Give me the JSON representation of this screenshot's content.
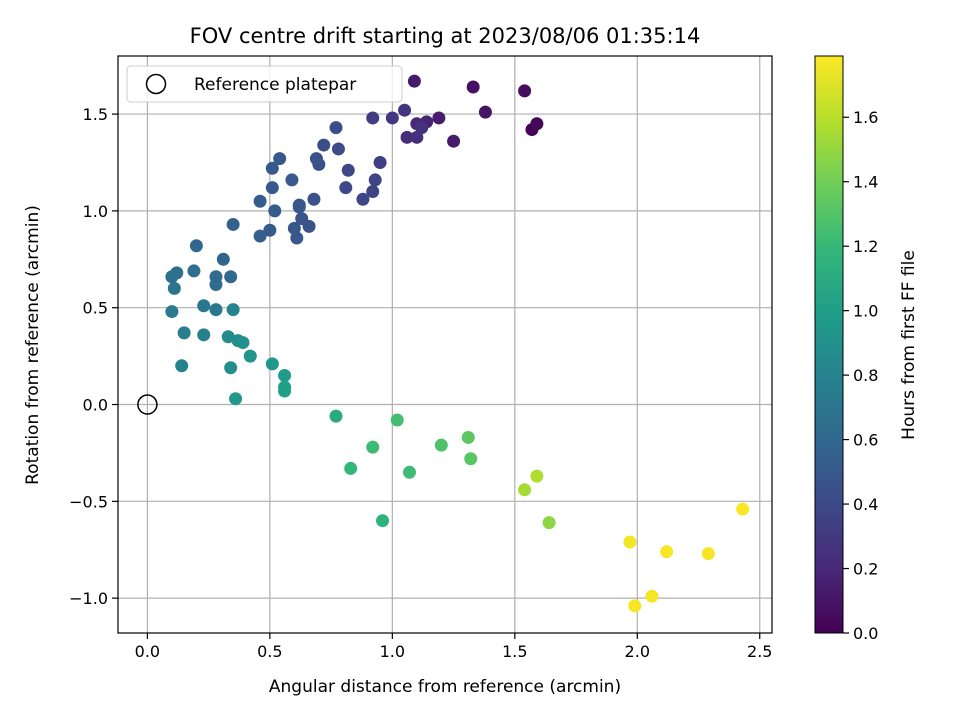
{
  "chart_data": {
    "type": "scatter",
    "title": "FOV centre drift starting at 2023/08/06 01:35:14",
    "xlabel": "Angular distance from reference (arcmin)",
    "ylabel": "Rotation from reference (arcmin)",
    "xlim": [
      -0.12,
      2.55
    ],
    "ylim": [
      -1.18,
      1.8
    ],
    "xticks": [
      0.0,
      0.5,
      1.0,
      1.5,
      2.0,
      2.5
    ],
    "xtick_labels": [
      "0.0",
      "0.5",
      "1.0",
      "1.5",
      "2.0",
      "2.5"
    ],
    "yticks": [
      -1.0,
      -0.5,
      0.0,
      0.5,
      1.0,
      1.5
    ],
    "ytick_labels": [
      "−1.0",
      "−0.5",
      "0.0",
      "0.5",
      "1.0",
      "1.5"
    ],
    "grid": true,
    "legend": {
      "position": "top-left",
      "entries": [
        "Reference platepar"
      ]
    },
    "reference_point": {
      "x": 0.0,
      "y": 0.0
    },
    "colorbar": {
      "label": "Hours from first FF file",
      "colormap": "viridis",
      "range": [
        0.0,
        1.79
      ],
      "ticks": [
        0.0,
        0.2,
        0.4,
        0.6,
        0.8,
        1.0,
        1.2,
        1.4,
        1.6
      ],
      "tick_labels": [
        "0.0",
        "0.2",
        "0.4",
        "0.6",
        "0.8",
        "1.0",
        "1.2",
        "1.4",
        "1.6"
      ],
      "colors": [
        "#440154",
        "#482878",
        "#3e4989",
        "#31688e",
        "#26828e",
        "#1f9e89",
        "#35b779",
        "#6ece58",
        "#b5de2b",
        "#fde725"
      ]
    },
    "points": [
      {
        "x": 1.57,
        "y": 1.42,
        "c": 0.02
      },
      {
        "x": 1.59,
        "y": 1.45,
        "c": 0.03
      },
      {
        "x": 1.54,
        "y": 1.62,
        "c": 0.05
      },
      {
        "x": 1.33,
        "y": 1.64,
        "c": 0.08
      },
      {
        "x": 1.38,
        "y": 1.51,
        "c": 0.1
      },
      {
        "x": 1.09,
        "y": 1.67,
        "c": 0.12
      },
      {
        "x": 1.25,
        "y": 1.36,
        "c": 0.13
      },
      {
        "x": 1.19,
        "y": 1.48,
        "c": 0.15
      },
      {
        "x": 1.14,
        "y": 1.46,
        "c": 0.18
      },
      {
        "x": 1.1,
        "y": 1.45,
        "c": 0.2
      },
      {
        "x": 1.06,
        "y": 1.38,
        "c": 0.22
      },
      {
        "x": 1.1,
        "y": 1.38,
        "c": 0.24
      },
      {
        "x": 1.12,
        "y": 1.43,
        "c": 0.26
      },
      {
        "x": 1.05,
        "y": 1.52,
        "c": 0.28
      },
      {
        "x": 1.0,
        "y": 1.48,
        "c": 0.3
      },
      {
        "x": 0.92,
        "y": 1.48,
        "c": 0.32
      },
      {
        "x": 0.95,
        "y": 1.25,
        "c": 0.34
      },
      {
        "x": 0.93,
        "y": 1.16,
        "c": 0.36
      },
      {
        "x": 0.92,
        "y": 1.1,
        "c": 0.37
      },
      {
        "x": 0.88,
        "y": 1.06,
        "c": 0.38
      },
      {
        "x": 0.82,
        "y": 1.21,
        "c": 0.39
      },
      {
        "x": 0.81,
        "y": 1.12,
        "c": 0.4
      },
      {
        "x": 0.78,
        "y": 1.32,
        "c": 0.41
      },
      {
        "x": 0.77,
        "y": 1.43,
        "c": 0.42
      },
      {
        "x": 0.72,
        "y": 1.34,
        "c": 0.43
      },
      {
        "x": 0.7,
        "y": 1.24,
        "c": 0.44
      },
      {
        "x": 0.69,
        "y": 1.27,
        "c": 0.45
      },
      {
        "x": 0.68,
        "y": 1.06,
        "c": 0.46
      },
      {
        "x": 0.66,
        "y": 0.92,
        "c": 0.47
      },
      {
        "x": 0.63,
        "y": 0.96,
        "c": 0.47
      },
      {
        "x": 0.62,
        "y": 1.02,
        "c": 0.48
      },
      {
        "x": 0.62,
        "y": 1.03,
        "c": 0.48
      },
      {
        "x": 0.6,
        "y": 0.91,
        "c": 0.49
      },
      {
        "x": 0.61,
        "y": 0.86,
        "c": 0.49
      },
      {
        "x": 0.59,
        "y": 1.16,
        "c": 0.5
      },
      {
        "x": 0.54,
        "y": 1.27,
        "c": 0.5
      },
      {
        "x": 0.51,
        "y": 1.22,
        "c": 0.51
      },
      {
        "x": 0.51,
        "y": 1.12,
        "c": 0.51
      },
      {
        "x": 0.52,
        "y": 1.0,
        "c": 0.52
      },
      {
        "x": 0.5,
        "y": 0.9,
        "c": 0.52
      },
      {
        "x": 0.46,
        "y": 1.05,
        "c": 0.53
      },
      {
        "x": 0.46,
        "y": 0.87,
        "c": 0.53
      },
      {
        "x": 0.35,
        "y": 0.93,
        "c": 0.55
      },
      {
        "x": 0.31,
        "y": 0.75,
        "c": 0.58
      },
      {
        "x": 0.2,
        "y": 0.82,
        "c": 0.59
      },
      {
        "x": 0.34,
        "y": 0.66,
        "c": 0.6
      },
      {
        "x": 0.28,
        "y": 0.66,
        "c": 0.61
      },
      {
        "x": 0.28,
        "y": 0.62,
        "c": 0.62
      },
      {
        "x": 0.19,
        "y": 0.69,
        "c": 0.64
      },
      {
        "x": 0.12,
        "y": 0.68,
        "c": 0.65
      },
      {
        "x": 0.1,
        "y": 0.66,
        "c": 0.66
      },
      {
        "x": 0.11,
        "y": 0.6,
        "c": 0.68
      },
      {
        "x": 0.23,
        "y": 0.51,
        "c": 0.7
      },
      {
        "x": 0.28,
        "y": 0.49,
        "c": 0.72
      },
      {
        "x": 0.1,
        "y": 0.48,
        "c": 0.74
      },
      {
        "x": 0.15,
        "y": 0.37,
        "c": 0.76
      },
      {
        "x": 0.23,
        "y": 0.36,
        "c": 0.78
      },
      {
        "x": 0.35,
        "y": 0.49,
        "c": 0.82
      },
      {
        "x": 0.33,
        "y": 0.35,
        "c": 0.86
      },
      {
        "x": 0.37,
        "y": 0.33,
        "c": 0.88
      },
      {
        "x": 0.39,
        "y": 0.32,
        "c": 0.9
      },
      {
        "x": 0.42,
        "y": 0.25,
        "c": 0.92
      },
      {
        "x": 0.14,
        "y": 0.2,
        "c": 0.8
      },
      {
        "x": 0.34,
        "y": 0.19,
        "c": 0.88
      },
      {
        "x": 0.36,
        "y": 0.03,
        "c": 0.95
      },
      {
        "x": 0.51,
        "y": 0.21,
        "c": 0.96
      },
      {
        "x": 0.56,
        "y": 0.15,
        "c": 0.98
      },
      {
        "x": 0.56,
        "y": 0.09,
        "c": 1.0
      },
      {
        "x": 0.56,
        "y": 0.07,
        "c": 1.01
      },
      {
        "x": 0.77,
        "y": -0.06,
        "c": 1.1
      },
      {
        "x": 0.83,
        "y": -0.33,
        "c": 1.18
      },
      {
        "x": 0.92,
        "y": -0.22,
        "c": 1.22
      },
      {
        "x": 0.96,
        "y": -0.6,
        "c": 1.15
      },
      {
        "x": 1.02,
        "y": -0.08,
        "c": 1.25
      },
      {
        "x": 1.07,
        "y": -0.35,
        "c": 1.23
      },
      {
        "x": 1.2,
        "y": -0.21,
        "c": 1.28
      },
      {
        "x": 1.31,
        "y": -0.17,
        "c": 1.33
      },
      {
        "x": 1.32,
        "y": -0.28,
        "c": 1.32
      },
      {
        "x": 1.54,
        "y": -0.44,
        "c": 1.55
      },
      {
        "x": 1.59,
        "y": -0.37,
        "c": 1.58
      },
      {
        "x": 1.64,
        "y": -0.61,
        "c": 1.48
      },
      {
        "x": 1.97,
        "y": -0.71,
        "c": 1.76
      },
      {
        "x": 1.99,
        "y": -1.04,
        "c": 1.77
      },
      {
        "x": 2.06,
        "y": -0.99,
        "c": 1.76
      },
      {
        "x": 2.12,
        "y": -0.76,
        "c": 1.77
      },
      {
        "x": 2.29,
        "y": -0.77,
        "c": 1.77
      },
      {
        "x": 2.43,
        "y": -0.54,
        "c": 1.78
      }
    ]
  }
}
